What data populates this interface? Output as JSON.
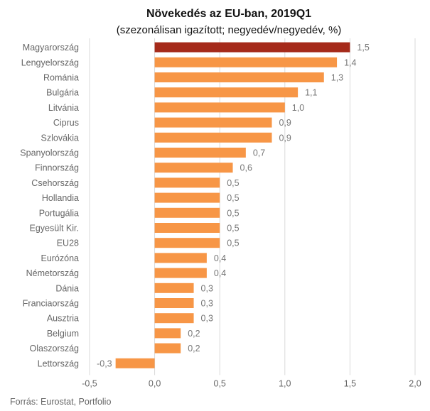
{
  "chart_data": {
    "type": "bar",
    "orientation": "horizontal",
    "title": "Növekedés az EU-ban, 2019Q1",
    "subtitle": "(szezonálisan igazított; negyedév/negyedév, %)",
    "categories": [
      "Magyarország",
      "Lengyelország",
      "Románia",
      "Bulgária",
      "Litvánia",
      "Ciprus",
      "Szlovákia",
      "Spanyolország",
      "Finnország",
      "Csehország",
      "Hollandia",
      "Portugália",
      "Egyesült Kir.",
      "EU28",
      "Eurózóna",
      "Németország",
      "Dánia",
      "Franciaország",
      "Ausztria",
      "Belgium",
      "Olaszország",
      "Lettország"
    ],
    "values": [
      1.5,
      1.4,
      1.3,
      1.1,
      1.0,
      0.9,
      0.9,
      0.7,
      0.6,
      0.5,
      0.5,
      0.5,
      0.5,
      0.5,
      0.4,
      0.4,
      0.3,
      0.3,
      0.3,
      0.2,
      0.2,
      -0.3
    ],
    "value_labels": [
      "1,5",
      "1,4",
      "1,3",
      "1,1",
      "1,0",
      "0,9",
      "0,9",
      "0,7",
      "0,6",
      "0,5",
      "0,5",
      "0,5",
      "0,5",
      "0,5",
      "0,4",
      "0,4",
      "0,3",
      "0,3",
      "0,3",
      "0,2",
      "0,2",
      "-0,3"
    ],
    "highlight_category": "Magyarország",
    "xlim": [
      -0.5,
      2.0
    ],
    "xticks": [
      -0.5,
      0.0,
      0.5,
      1.0,
      1.5,
      2.0
    ],
    "xtick_labels": [
      "-0,5",
      "0,0",
      "0,5",
      "1,0",
      "1,5",
      "2,0"
    ],
    "grid": true,
    "xlabel": "",
    "ylabel": ""
  },
  "source": "Forrás: Eurostat, Portfolio",
  "colors": {
    "bar": "#F79646",
    "highlight": "#A52A1A",
    "grid": "#D9D9D9"
  }
}
